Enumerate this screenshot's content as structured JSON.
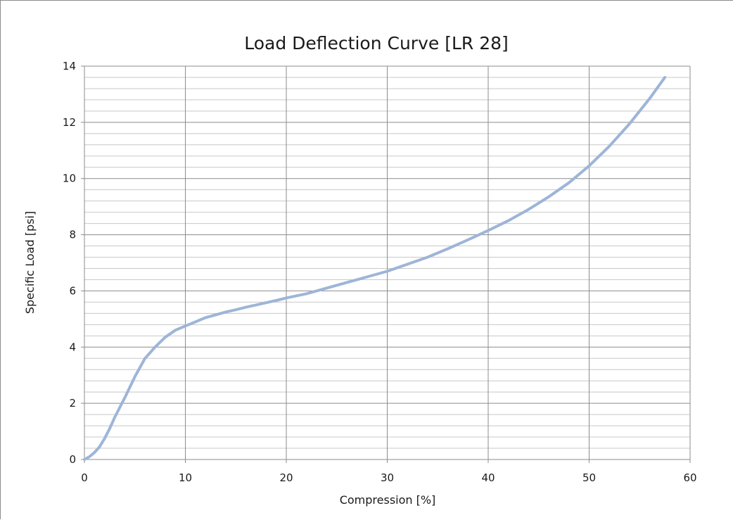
{
  "chart_data": {
    "type": "line",
    "title": "Load Deflection Curve  [LR 28]",
    "xlabel": "Compression [%]",
    "ylabel": "Specific Load [psi]",
    "xlim": [
      0,
      60
    ],
    "ylim": [
      0,
      14
    ],
    "x_ticks": [
      "0",
      "10",
      "20",
      "30",
      "40",
      "50",
      "60"
    ],
    "y_ticks": [
      "0",
      "2",
      "4",
      "6",
      "8",
      "10",
      "12",
      "14"
    ],
    "grid": true,
    "legend": "none",
    "colors": {
      "line": "#9db5d7",
      "major_grid": "#8c8c8c",
      "minor_grid": "#c8c8c8"
    },
    "series": [
      {
        "x": [
          0,
          0.5,
          1,
          1.5,
          2,
          2.5,
          3,
          3.5,
          4,
          5,
          6,
          7,
          8,
          9,
          10,
          11,
          12,
          13,
          14,
          15,
          16,
          17,
          18,
          19,
          20,
          22,
          24,
          26,
          28,
          30,
          32,
          34,
          36,
          38,
          40,
          42,
          44,
          46,
          48,
          50,
          52,
          54,
          56,
          57.5
        ],
        "y": [
          0,
          0.1,
          0.25,
          0.45,
          0.75,
          1.1,
          1.5,
          1.85,
          2.2,
          2.95,
          3.6,
          4.0,
          4.35,
          4.6,
          4.75,
          4.9,
          5.05,
          5.15,
          5.25,
          5.33,
          5.42,
          5.5,
          5.58,
          5.66,
          5.75,
          5.9,
          6.1,
          6.3,
          6.5,
          6.7,
          6.95,
          7.2,
          7.5,
          7.82,
          8.15,
          8.5,
          8.9,
          9.35,
          9.85,
          10.45,
          11.15,
          11.95,
          12.85,
          13.6
        ]
      }
    ]
  }
}
